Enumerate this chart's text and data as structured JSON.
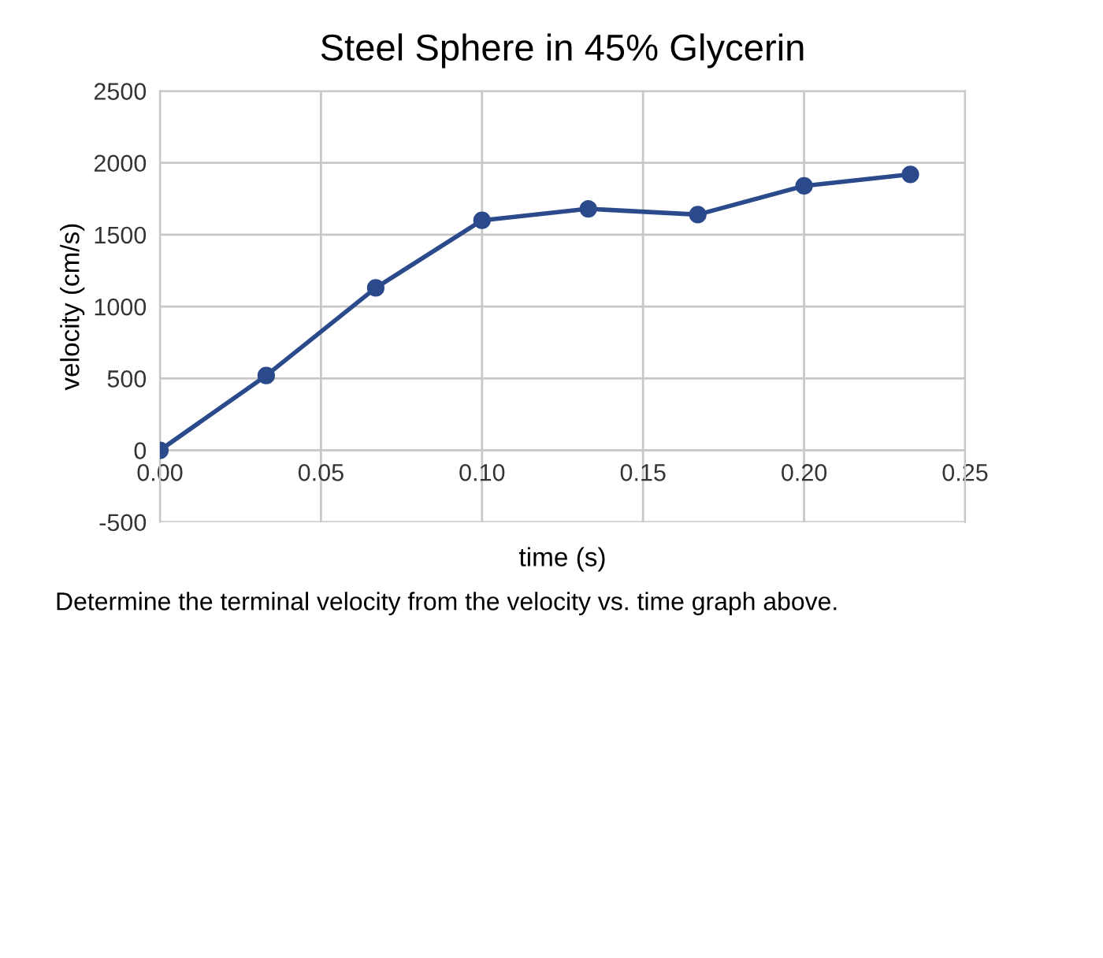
{
  "chart_data": {
    "type": "line",
    "title": "Steel Sphere in 45% Glycerin",
    "xlabel": "time (s)",
    "ylabel": "velocity (cm/s)",
    "x": [
      0,
      0.033,
      0.067,
      0.1,
      0.133,
      0.167,
      0.2,
      0.233
    ],
    "series": [
      {
        "color": "#2b4a8c",
        "values": [
          0,
          520,
          1130,
          1600,
          1680,
          1640,
          1840,
          1920
        ]
      }
    ],
    "xlim": [
      0,
      0.25
    ],
    "ylim": [
      -500,
      2500
    ],
    "xticks": [
      {
        "value": 0,
        "label": "0.00"
      },
      0.05,
      {
        "value": 0.1,
        "label": "0.10"
      },
      0.15,
      {
        "value": 0.2,
        "label": "0.20"
      },
      0.25
    ],
    "yticks": [
      -500,
      0,
      500,
      1000,
      1500,
      2000,
      2500
    ],
    "grid": true,
    "marker": "circle",
    "line_style": "solid",
    "annotations": [
      "Determine the terminal velocity from the velocity vs. time graph above."
    ]
  }
}
